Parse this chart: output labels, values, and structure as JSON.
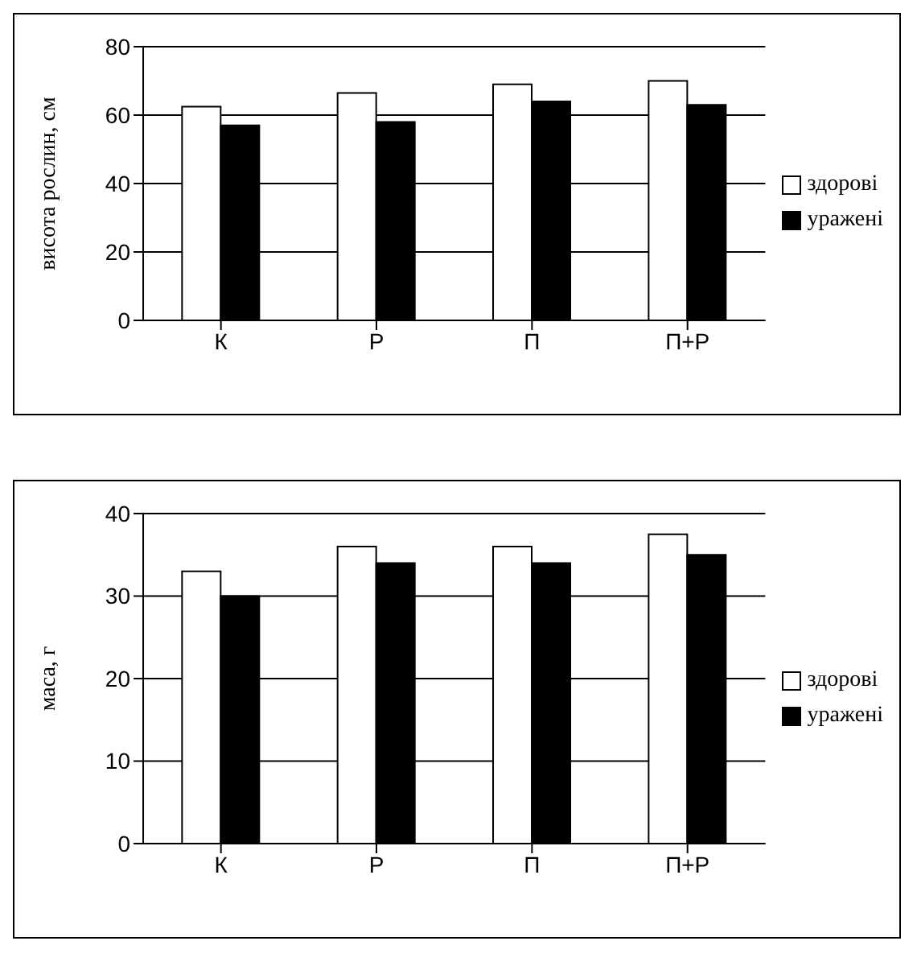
{
  "chart_data": [
    {
      "type": "bar",
      "categories": [
        "К",
        "Р",
        "П",
        "П+Р"
      ],
      "ylabel": "висота рослин, см",
      "ylim": [
        0,
        80
      ],
      "yticks": [
        0,
        20,
        40,
        60,
        80
      ],
      "grid": "y",
      "legend": "right",
      "series": [
        {
          "name": "здорові",
          "color": "#ffffff",
          "values": [
            62.5,
            66.5,
            69,
            70
          ]
        },
        {
          "name": "уражені",
          "color": "#000000",
          "values": [
            57,
            58,
            64,
            63
          ]
        }
      ]
    },
    {
      "type": "bar",
      "categories": [
        "К",
        "Р",
        "П",
        "П+Р"
      ],
      "ylabel": "маса, г",
      "ylim": [
        0,
        40
      ],
      "yticks": [
        0,
        10,
        20,
        30,
        40
      ],
      "grid": "y",
      "legend": "right",
      "series": [
        {
          "name": "здорові",
          "color": "#ffffff",
          "values": [
            33,
            36,
            36,
            37.5
          ]
        },
        {
          "name": "уражені",
          "color": "#000000",
          "values": [
            30,
            34,
            34,
            35
          ]
        }
      ]
    }
  ]
}
